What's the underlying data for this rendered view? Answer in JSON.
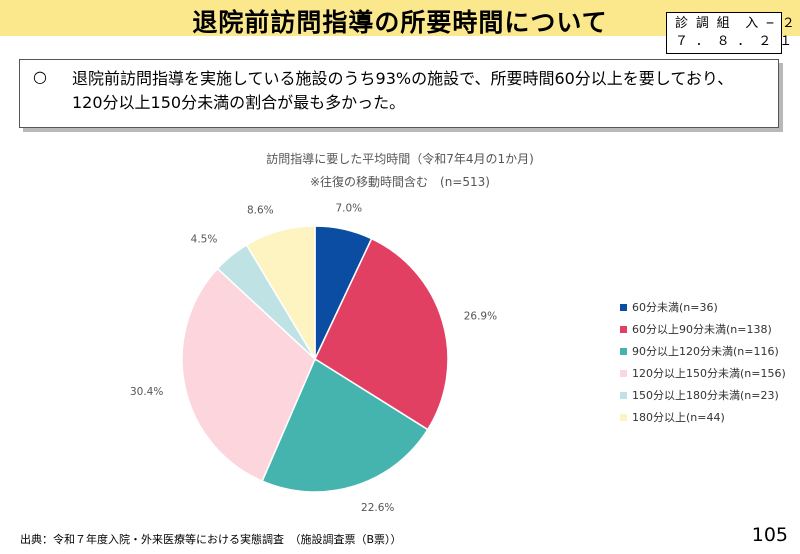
{
  "header": {
    "title": "退院前訪問指導の所要時間について",
    "doc_id_line1": "診 調 組  入 − ２",
    "doc_id_line2": "７ ． ８ ． ２ １"
  },
  "summary": {
    "bullet": "○",
    "line1": "退院前訪問指導を実施している施設のうち93%の施設で、所要時間60分以上を要しており、",
    "line2": "120分以上150分未満の割合が最も多かった。"
  },
  "chart_data": {
    "type": "pie",
    "title": "訪問指導に要した平均時間（令和7年4月の1か月)",
    "subtitle": "※往復の移動時間含む　(n=513)",
    "slices": [
      {
        "label": "60分未満(n=36)",
        "value": 7.0,
        "display": "7.0%",
        "color": "#0a4da2"
      },
      {
        "label": "60分以上90分未満(n=138)",
        "value": 26.9,
        "display": "26.9%",
        "color": "#e24063"
      },
      {
        "label": "90分以上120分未満(n=116)",
        "value": 22.6,
        "display": "22.6%",
        "color": "#45b3ae"
      },
      {
        "label": "120分以上150分未満(n=156)",
        "value": 30.4,
        "display": "30.4%",
        "color": "#fdd6dd"
      },
      {
        "label": "150分以上180分未満(n=23)",
        "value": 4.5,
        "display": "4.5%",
        "color": "#bfe3e4"
      },
      {
        "label": "180分以上(n=44)",
        "value": 8.6,
        "display": "8.6%",
        "color": "#fdf4c2"
      }
    ],
    "legend_position": "right"
  },
  "footer": {
    "source": "出典：令和７年度入院・外来医療等における実態調査　（施設調査票（B票））",
    "page": "105"
  }
}
